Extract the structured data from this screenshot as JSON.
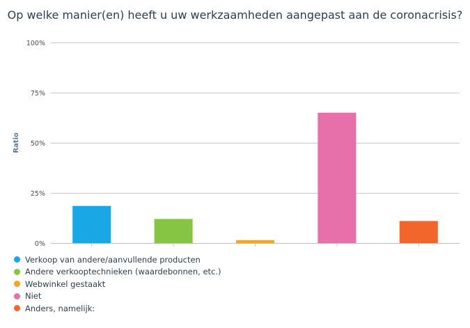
{
  "chart_data": {
    "type": "bar",
    "title": "Op welke manier(en) heeft u uw werkzaamheden aangepast aan de coronacrisis?",
    "ylabel": "Ratio",
    "xlabel": "",
    "ylim": [
      0,
      100
    ],
    "yticks": [
      0,
      25,
      50,
      75,
      100
    ],
    "ytick_labels": [
      "0%",
      "25%",
      "50%",
      "75%",
      "100%"
    ],
    "grid": true,
    "legend_position": "bottom-left",
    "categories": [
      "Verkoop van andere/aanvullende producten",
      "Andere verkooptechnieken (waardebonnen, etc.)",
      "Webwinkel gestaakt",
      "Niet",
      "Anders, namelijk:"
    ],
    "values": [
      18.5,
      12,
      1.5,
      65,
      11
    ],
    "colors": [
      "#1aa7e6",
      "#86c443",
      "#f4a81d",
      "#e770ab",
      "#f3662b"
    ]
  }
}
